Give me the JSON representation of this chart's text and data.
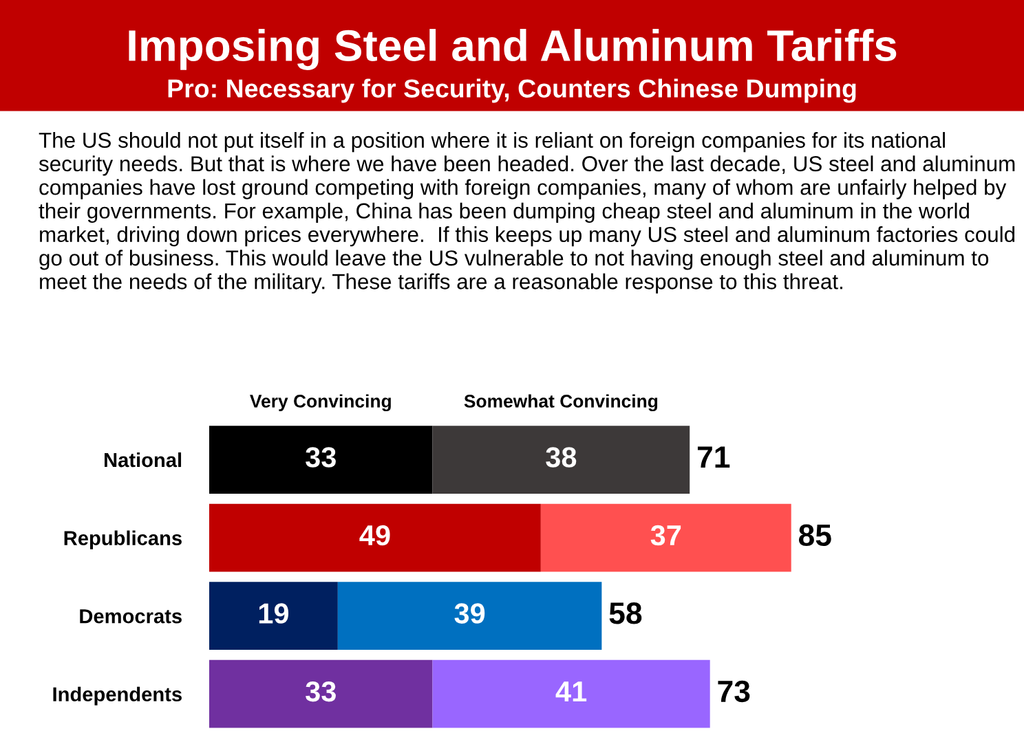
{
  "chart_data": {
    "type": "bar",
    "orientation": "horizontal",
    "stacked": true,
    "title": "Imposing Steel and Aluminum Tariffs",
    "subtitle": "Pro: Necessary for Security, Counters Chinese Dumping",
    "annotations": [
      "The US should not put itself in a position where it is reliant on foreign companies for its national security needs. But that is where we have been headed. Over the last decade, US steel and aluminum companies have lost ground competing with foreign companies, many of whom are unfairly helped by their governments. For example, China has been dumping cheap steel and aluminum in the world market, driving down prices everywhere.  If this keeps up many US steel and aluminum factories could go out of business. This would leave the US vulnerable to not having enough steel and aluminum to meet the needs of the military. These tariffs are a reasonable response to this threat."
    ],
    "categories": [
      "National",
      "Republicans",
      "Democrats",
      "Independents"
    ],
    "series": [
      {
        "name": "Very Convincing",
        "values": [
          33,
          49,
          19,
          33
        ],
        "colors": [
          "#000000",
          "#c00000",
          "#002060",
          "#7030a0"
        ]
      },
      {
        "name": "Somewhat Convincing",
        "values": [
          38,
          37,
          39,
          41
        ],
        "colors": [
          "#3d3939",
          "#ff5050",
          "#0070c0",
          "#9966ff"
        ]
      }
    ],
    "data_labels": true,
    "totals": [
      "71",
      "85",
      "58",
      "73"
    ]
  }
}
